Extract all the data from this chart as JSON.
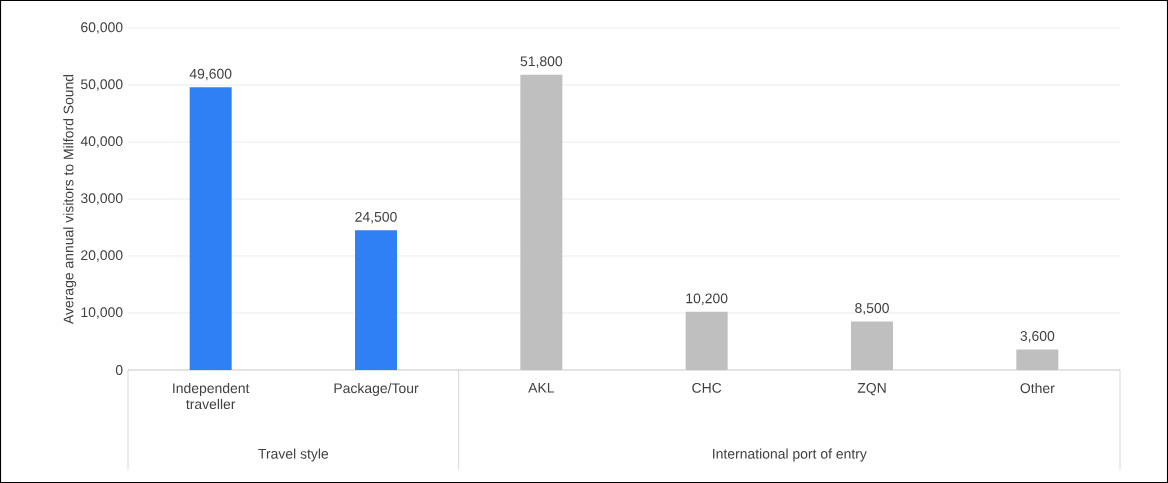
{
  "chart_data": {
    "type": "bar",
    "ylabel": "Average annual visitors to Milford Sound",
    "categories": [
      "Independent traveller",
      "Package/Tour",
      "AKL",
      "CHC",
      "ZQN",
      "Other"
    ],
    "values": [
      49600,
      24500,
      51800,
      10200,
      8500,
      3600
    ],
    "value_labels": [
      "49,600",
      "24,500",
      "51,800",
      "10,200",
      "8,500",
      "3,600"
    ],
    "colors": [
      "#2f7ff5",
      "#2f7ff5",
      "#bfbfbf",
      "#bfbfbf",
      "#bfbfbf",
      "#bfbfbf"
    ],
    "ylim": [
      0,
      60000
    ],
    "yticks": [
      0,
      {
        "value": 10000,
        "label": "10,000"
      },
      {
        "value": 20000,
        "label": "20,000"
      },
      {
        "value": 30000,
        "label": "30,000"
      },
      {
        "value": 40000,
        "label": "40,000"
      },
      {
        "value": 50000,
        "label": "50,000"
      },
      {
        "value": 60000,
        "label": "60,000"
      }
    ],
    "grid": "y",
    "annotations": [
      "Travel style",
      "International port of entry"
    ]
  }
}
